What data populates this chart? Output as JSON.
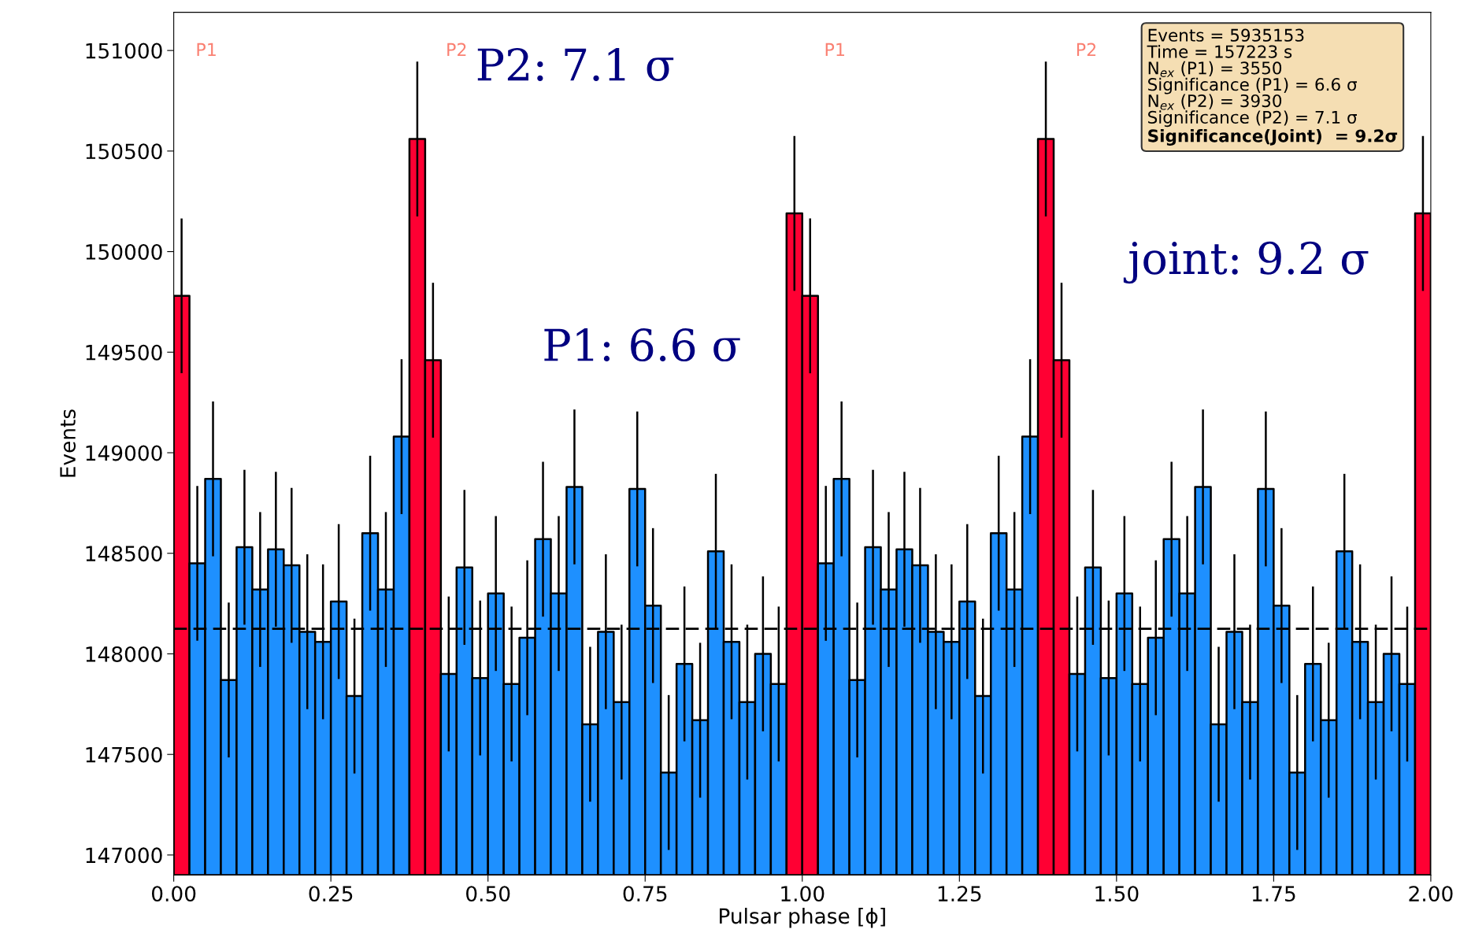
{
  "chart_data": {
    "type": "histogram",
    "xlabel": "Pulsar phase [ϕ]",
    "ylabel": "Events",
    "bins": [
      0.0,
      0.025,
      0.05,
      0.075,
      0.1,
      0.125,
      0.15,
      0.175,
      0.2,
      0.225,
      0.25,
      0.275,
      0.3,
      0.325,
      0.35,
      0.375,
      0.4,
      0.425,
      0.45,
      0.475,
      0.5,
      0.525,
      0.55,
      0.575,
      0.6,
      0.625,
      0.65,
      0.675,
      0.7,
      0.725,
      0.75,
      0.775,
      0.8,
      0.825,
      0.85,
      0.875,
      0.9,
      0.925,
      0.95,
      0.975,
      1.0,
      1.025,
      1.05,
      1.075,
      1.1,
      1.125,
      1.15,
      1.175,
      1.2,
      1.225,
      1.25,
      1.275,
      1.3,
      1.325,
      1.35,
      1.375,
      1.4,
      1.425,
      1.45,
      1.475,
      1.5,
      1.525,
      1.55,
      1.575,
      1.6,
      1.625,
      1.65,
      1.675,
      1.7,
      1.725,
      1.75,
      1.775,
      1.8,
      1.825,
      1.85,
      1.875,
      1.9,
      1.925,
      1.95,
      1.975,
      2.0
    ],
    "values": [
      149780,
      148450,
      148870,
      147870,
      148530,
      148320,
      148520,
      148440,
      148110,
      148060,
      148260,
      147790,
      148600,
      148320,
      149080,
      150560,
      149460,
      147900,
      148430,
      147880,
      148300,
      147850,
      148080,
      148570,
      148300,
      148830,
      147650,
      148110,
      147760,
      148820,
      148240,
      147410,
      147950,
      147670,
      148510,
      148060,
      147760,
      148000,
      147850,
      150190,
      149780,
      148450,
      148870,
      147870,
      148530,
      148320,
      148520,
      148440,
      148110,
      148060,
      148260,
      147790,
      148600,
      148320,
      149080,
      150560,
      149460,
      147900,
      148430,
      147880,
      148300,
      147850,
      148080,
      148570,
      148300,
      148830,
      147650,
      148110,
      147760,
      148820,
      148240,
      147410,
      147950,
      147670,
      148510,
      148060,
      147760,
      148000,
      147850,
      150190
    ],
    "errors": [
      385,
      385,
      385,
      385,
      385,
      385,
      385,
      385,
      385,
      385,
      385,
      385,
      385,
      385,
      385,
      385,
      385,
      385,
      385,
      385,
      385,
      385,
      385,
      385,
      385,
      385,
      385,
      385,
      385,
      385,
      385,
      385,
      385,
      385,
      385,
      385,
      385,
      385,
      385,
      385,
      385,
      385,
      385,
      385,
      385,
      385,
      385,
      385,
      385,
      385,
      385,
      385,
      385,
      385,
      385,
      385,
      385,
      385,
      385,
      385,
      385,
      385,
      385,
      385,
      385,
      385,
      385,
      385,
      385,
      385,
      385,
      385,
      385,
      385,
      385,
      385,
      385,
      385,
      385,
      385
    ],
    "colors": [
      "#ff0033",
      "#1e90ff",
      "#1e90ff",
      "#1e90ff",
      "#1e90ff",
      "#1e90ff",
      "#1e90ff",
      "#1e90ff",
      "#1e90ff",
      "#1e90ff",
      "#1e90ff",
      "#1e90ff",
      "#1e90ff",
      "#1e90ff",
      "#1e90ff",
      "#ff0033",
      "#ff0033",
      "#1e90ff",
      "#1e90ff",
      "#1e90ff",
      "#1e90ff",
      "#1e90ff",
      "#1e90ff",
      "#1e90ff",
      "#1e90ff",
      "#1e90ff",
      "#1e90ff",
      "#1e90ff",
      "#1e90ff",
      "#1e90ff",
      "#1e90ff",
      "#1e90ff",
      "#1e90ff",
      "#1e90ff",
      "#1e90ff",
      "#1e90ff",
      "#1e90ff",
      "#1e90ff",
      "#1e90ff",
      "#ff0033",
      "#ff0033",
      "#1e90ff",
      "#1e90ff",
      "#1e90ff",
      "#1e90ff",
      "#1e90ff",
      "#1e90ff",
      "#1e90ff",
      "#1e90ff",
      "#1e90ff",
      "#1e90ff",
      "#1e90ff",
      "#1e90ff",
      "#1e90ff",
      "#1e90ff",
      "#ff0033",
      "#ff0033",
      "#1e90ff",
      "#1e90ff",
      "#1e90ff",
      "#1e90ff",
      "#1e90ff",
      "#1e90ff",
      "#1e90ff",
      "#1e90ff",
      "#1e90ff",
      "#1e90ff",
      "#1e90ff",
      "#1e90ff",
      "#1e90ff",
      "#1e90ff",
      "#1e90ff",
      "#1e90ff",
      "#1e90ff",
      "#1e90ff",
      "#1e90ff",
      "#1e90ff",
      "#1e90ff",
      "#1e90ff",
      "#ff0033"
    ],
    "ref_lines": [
      {
        "axis": "y",
        "value": 148125,
        "color": "#000000",
        "line_style": "dashed"
      }
    ],
    "xlim": [
      0,
      2
    ],
    "ylim": [
      146900,
      151190
    ],
    "xticks": [
      {
        "value": 0,
        "label": "0.00"
      },
      {
        "value": 0.25,
        "label": "0.25"
      },
      {
        "value": 0.5,
        "label": "0.50"
      },
      {
        "value": 0.75,
        "label": "0.75"
      },
      {
        "value": 1,
        "label": "1.00"
      },
      {
        "value": 1.25,
        "label": "1.25"
      },
      {
        "value": 1.5,
        "label": "1.50"
      },
      {
        "value": 1.75,
        "label": "1.75"
      },
      {
        "value": 2,
        "label": "2.00"
      }
    ],
    "yticks": [
      147000,
      147500,
      148000,
      148500,
      149000,
      149500,
      150000,
      150500,
      151000
    ],
    "grid": false,
    "annotations": [
      "P1",
      "P2",
      "P1",
      "P2",
      "P2: 7.1 σ",
      "P1: 6.6 σ",
      "joint: 9.2 σ",
      "Events = 5935153\nTime = 157223 s\nN$_{ex}$ (P1) = 3550\nSignificance (P1) = 6.6 σ\nN$_{ex}$ (P2) = 3930\nSignificance (P2) = 7.1 σ",
      "Significance(Joint)  = 9.2σ"
    ]
  }
}
